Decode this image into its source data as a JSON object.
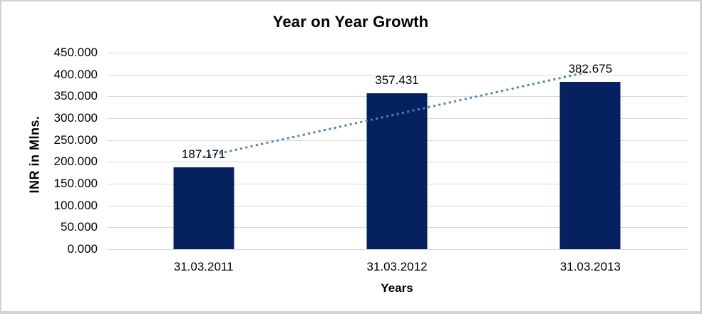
{
  "chart_data": {
    "type": "bar",
    "title": "Year on Year Growth",
    "xlabel": "Years",
    "ylabel": "INR in Mlns.",
    "categories": [
      "31.03.2011",
      "31.03.2012",
      "31.03.2013"
    ],
    "values": [
      187.171,
      357.431,
      382.675
    ],
    "value_labels": [
      "187.171",
      "357.431",
      "382.675"
    ],
    "ylim": [
      0,
      450
    ],
    "ytick_step": 50,
    "ytick_labels_top_to_bottom": [
      "450.000",
      "400.000",
      "350.000",
      "300.000",
      "250.000",
      "200.000",
      "150.000",
      "100.000",
      "50.000",
      "0.000"
    ],
    "grid": true,
    "legend": false,
    "bar_color": "#05215f",
    "grid_color": "#d9d9d9",
    "trendline": {
      "style": "dotted",
      "color": "#4f81bd",
      "start_value": 211.5,
      "end_value": 407.2,
      "spans_categories": [
        "31.03.2011",
        "31.03.2013"
      ],
      "drawn_in_front_of_bars": true
    }
  }
}
